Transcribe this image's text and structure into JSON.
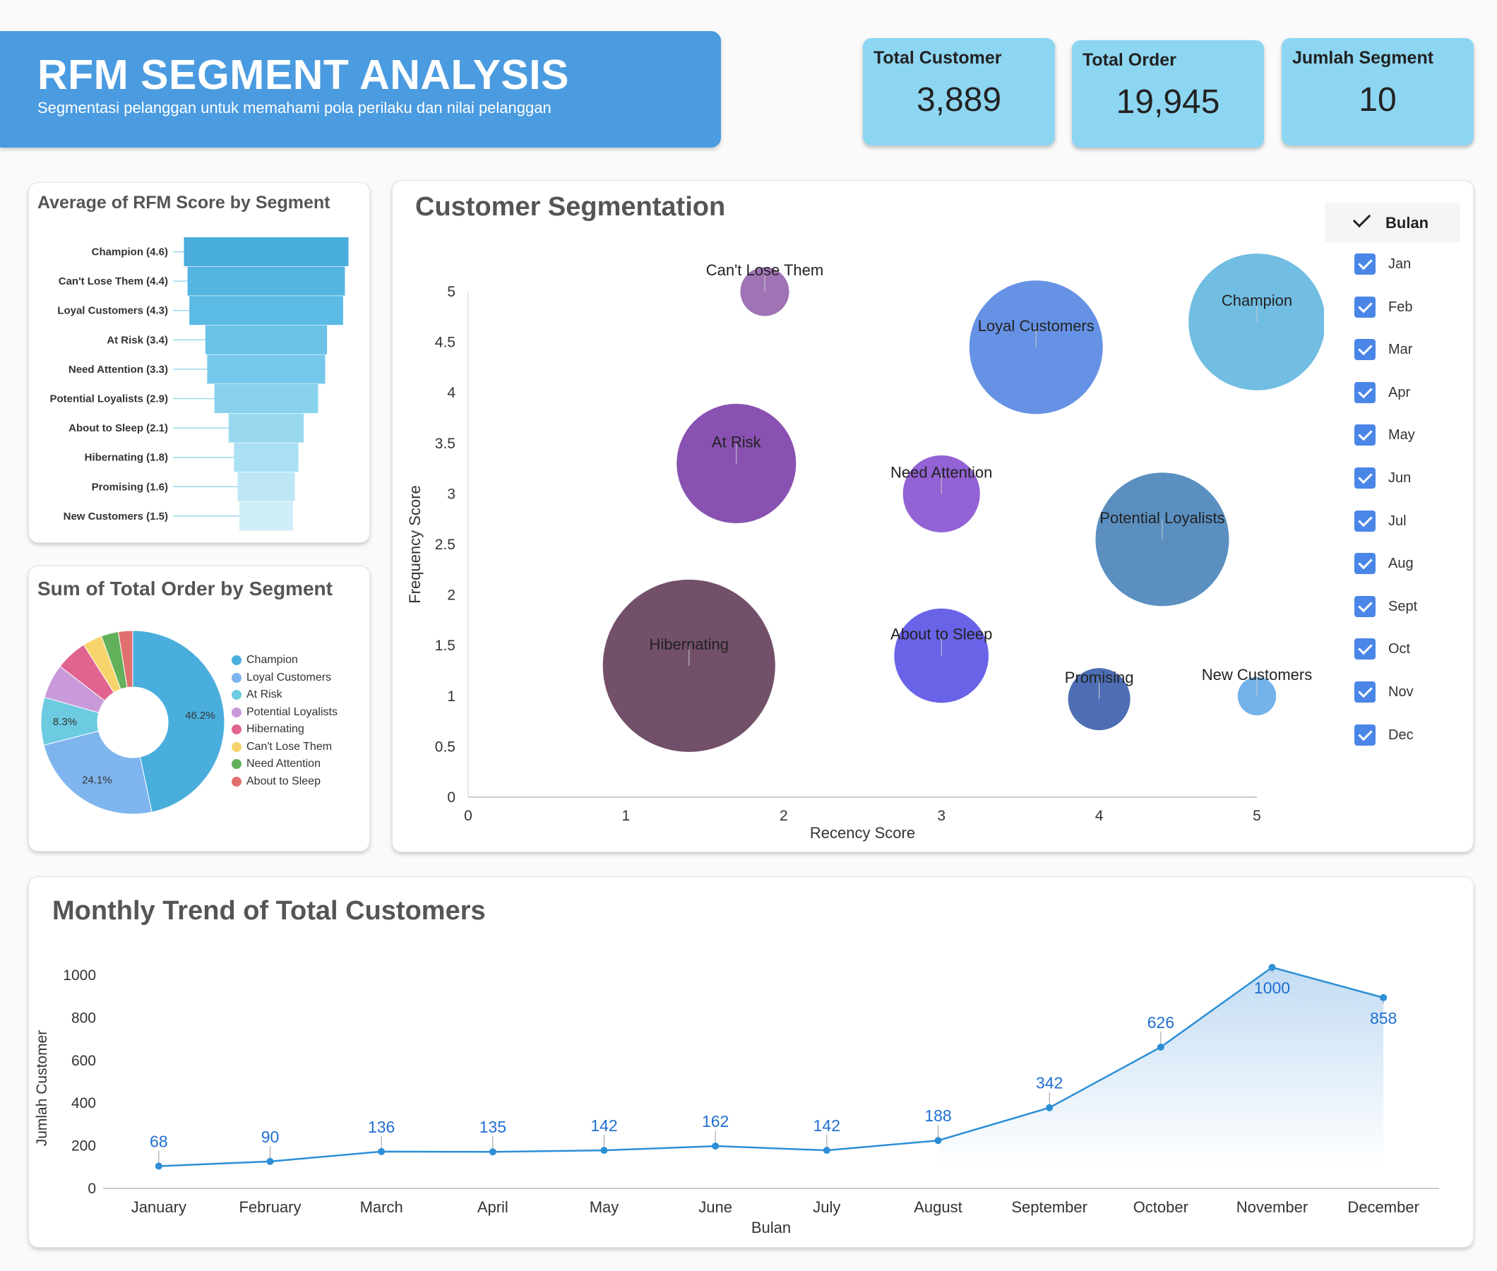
{
  "header": {
    "title": "RFM SEGMENT ANALYSIS",
    "subtitle": "Segmentasi pelanggan untuk memahami pola perilaku dan nilai pelanggan"
  },
  "kpis": [
    {
      "label": "Total Customer",
      "value": "3,889"
    },
    {
      "label": "Total Order",
      "value": "19,945"
    },
    {
      "label": "Jumlah Segment",
      "value": "10"
    }
  ],
  "filter": {
    "title": "Bulan",
    "months": [
      "Jan",
      "Feb",
      "Mar",
      "Apr",
      "May",
      "Jun",
      "Jul",
      "Aug",
      "Sept",
      "Oct",
      "Nov",
      "Dec"
    ],
    "checked": [
      true,
      true,
      true,
      true,
      true,
      true,
      true,
      true,
      true,
      true,
      true,
      true
    ],
    "check_color": "#4a86e8"
  },
  "chart_data": [
    {
      "type": "bar",
      "orientation": "horizontal-funnel",
      "title": "Average of RFM Score by Segment",
      "categories": [
        "Champion (4.6)",
        "Can't Lose Them (4.4)",
        "Loyal Customers (4.3)",
        "At Risk (3.4)",
        "Need Attention (3.3)",
        "Potential Loyalists (2.9)",
        "About to Sleep (2.1)",
        "Hibernating (1.8)",
        "Promising (1.6)",
        "New Customers (1.5)"
      ],
      "values": [
        4.6,
        4.4,
        4.3,
        3.4,
        3.3,
        2.9,
        2.1,
        1.8,
        1.6,
        1.5
      ],
      "colors": [
        "#4aaedd",
        "#55b5e1",
        "#5cbbe4",
        "#6ac3e7",
        "#75c8ea",
        "#88d2ee",
        "#98d9f0",
        "#aae0f3",
        "#bde7f5",
        "#d0eef8"
      ]
    },
    {
      "type": "pie",
      "title": "Sum of Total Order by Segment",
      "labels": [
        "Champion",
        "Loyal Customers",
        "At Risk",
        "Potential Loyalists",
        "Hibernating",
        "Can't Lose Them",
        "Need Attention",
        "About to Sleep"
      ],
      "values": [
        46.2,
        24.1,
        8.3,
        6.0,
        5.5,
        3.4,
        3.0,
        2.5
      ],
      "data_labels": [
        "46.2%",
        "24.1%",
        "8.3%",
        "",
        "",
        "",
        "",
        ""
      ],
      "colors": [
        "#4aaedd",
        "#7fb5ee",
        "#6ccbe0",
        "#c99ad9",
        "#e0648f",
        "#f7d46b",
        "#62b05a",
        "#e07070"
      ],
      "legend": "right"
    },
    {
      "type": "scatter",
      "subtype": "bubble",
      "title": "Customer Segmentation",
      "xlabel": "Recency Score",
      "ylabel": "Frequency Score",
      "xlim": [
        0,
        5
      ],
      "ylim": [
        0,
        5
      ],
      "xticks": [
        "0",
        "1",
        "2",
        "3",
        "4",
        "5"
      ],
      "yticks": [
        "0",
        "0.5",
        "1",
        "1.5",
        "2",
        "2.5",
        "3",
        "3.5",
        "4",
        "4.5",
        "5"
      ],
      "points": [
        {
          "label": "Can't Lose Them",
          "x": 1.88,
          "y": 5.0,
          "size": 0.08,
          "color": "#8e5ba8"
        },
        {
          "label": "Loyal Customers",
          "x": 3.6,
          "y": 4.45,
          "size": 0.6,
          "color": "#4b7fe0"
        },
        {
          "label": "Champion",
          "x": 5.0,
          "y": 4.7,
          "size": 0.63,
          "color": "#59b1dd"
        },
        {
          "label": "At Risk",
          "x": 1.7,
          "y": 3.3,
          "size": 0.48,
          "color": "#7433a3"
        },
        {
          "label": "Need Attention",
          "x": 3.0,
          "y": 3.0,
          "size": 0.2,
          "color": "#8046cc"
        },
        {
          "label": "Potential Loyalists",
          "x": 4.4,
          "y": 2.55,
          "size": 0.6,
          "color": "#3d7bb5"
        },
        {
          "label": "Hibernating",
          "x": 1.4,
          "y": 1.3,
          "size": 1.0,
          "color": "#5a3150"
        },
        {
          "label": "About to Sleep",
          "x": 3.0,
          "y": 1.4,
          "size": 0.3,
          "color": "#4f48e4"
        },
        {
          "label": "Promising",
          "x": 4.0,
          "y": 0.97,
          "size": 0.13,
          "color": "#2e55a8"
        },
        {
          "label": "New Customers",
          "x": 5.0,
          "y": 1.0,
          "size": 0.05,
          "color": "#5aa6e6"
        }
      ],
      "grid": false
    },
    {
      "type": "area",
      "title": "Monthly Trend of Total Customers",
      "xlabel": "Bulan",
      "ylabel": "Jumlah Customer",
      "categories": [
        "January",
        "February",
        "March",
        "April",
        "May",
        "June",
        "July",
        "August",
        "September",
        "October",
        "November",
        "December"
      ],
      "values": [
        68,
        90,
        136,
        135,
        142,
        162,
        142,
        188,
        342,
        626,
        1000,
        858
      ],
      "ylim": [
        0,
        1000
      ],
      "yticks": [
        "0",
        "200",
        "400",
        "600",
        "800",
        "1000"
      ],
      "line_color": "#2c8fd6",
      "label_color": "#1f6fd1"
    }
  ]
}
